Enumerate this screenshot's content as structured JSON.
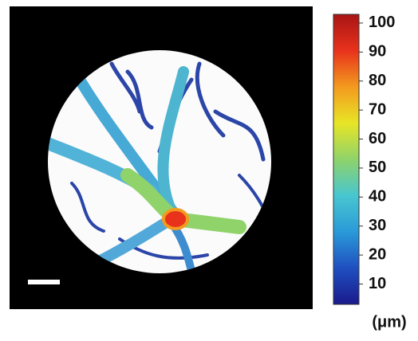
{
  "colorbar": {
    "lim": [
      3,
      103
    ],
    "ticks": [
      10,
      20,
      30,
      40,
      50,
      60,
      70,
      80,
      90,
      100
    ],
    "label": "(μm)",
    "colors": [
      "#1a1a8c",
      "#1f4fc0",
      "#2a9ad8",
      "#48c6d0",
      "#8fd36a",
      "#e8e526",
      "#f39a1e",
      "#e8321c",
      "#a81414"
    ]
  }
}
